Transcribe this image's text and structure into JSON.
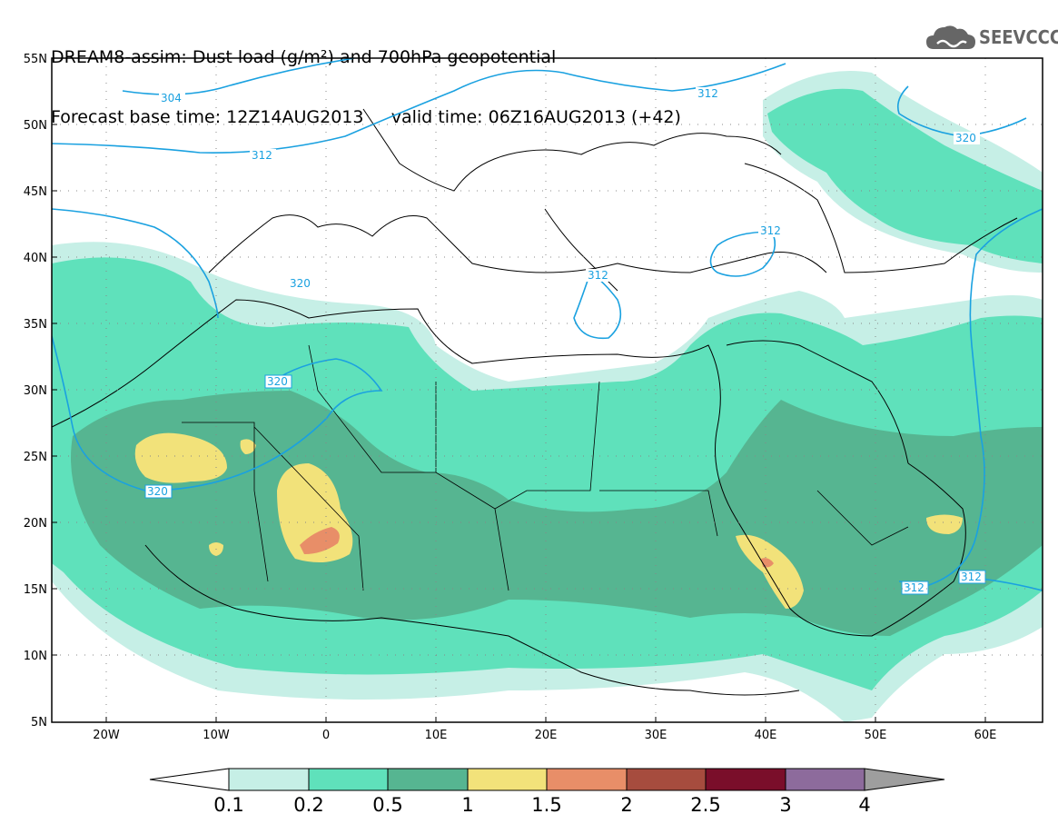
{
  "title": {
    "line1": "DREAM8-assim: Dust load (g/m²) and 700hPa geopotential",
    "line2_left": "Forecast base time: 12Z14AUG2013",
    "line2_right": "valid time: 06Z16AUG2013 (+42)"
  },
  "logo": {
    "text": "SEEVCCC",
    "icon": "cloud-logo-icon"
  },
  "map": {
    "lat_labels": [
      "55N",
      "50N",
      "45N",
      "40N",
      "35N",
      "30N",
      "25N",
      "20N",
      "15N",
      "10N",
      "5N"
    ],
    "lon_labels": [
      "20W",
      "10W",
      "0",
      "10E",
      "20E",
      "30E",
      "40E",
      "50E",
      "60E"
    ],
    "contour_labels": [
      "304",
      "312",
      "312",
      "320",
      "312",
      "312",
      "320",
      "320",
      "312",
      "312"
    ]
  },
  "legend": {
    "ticks": [
      "0.1",
      "0.2",
      "0.5",
      "1",
      "1.5",
      "2",
      "2.5",
      "3",
      "4"
    ],
    "colors": [
      "#c6efe6",
      "#5fe1bb",
      "#56b591",
      "#f2e27a",
      "#e88e68",
      "#a64c3e",
      "#7a0e2a",
      "#8d6b9c",
      "#9e9e9e"
    ]
  }
}
